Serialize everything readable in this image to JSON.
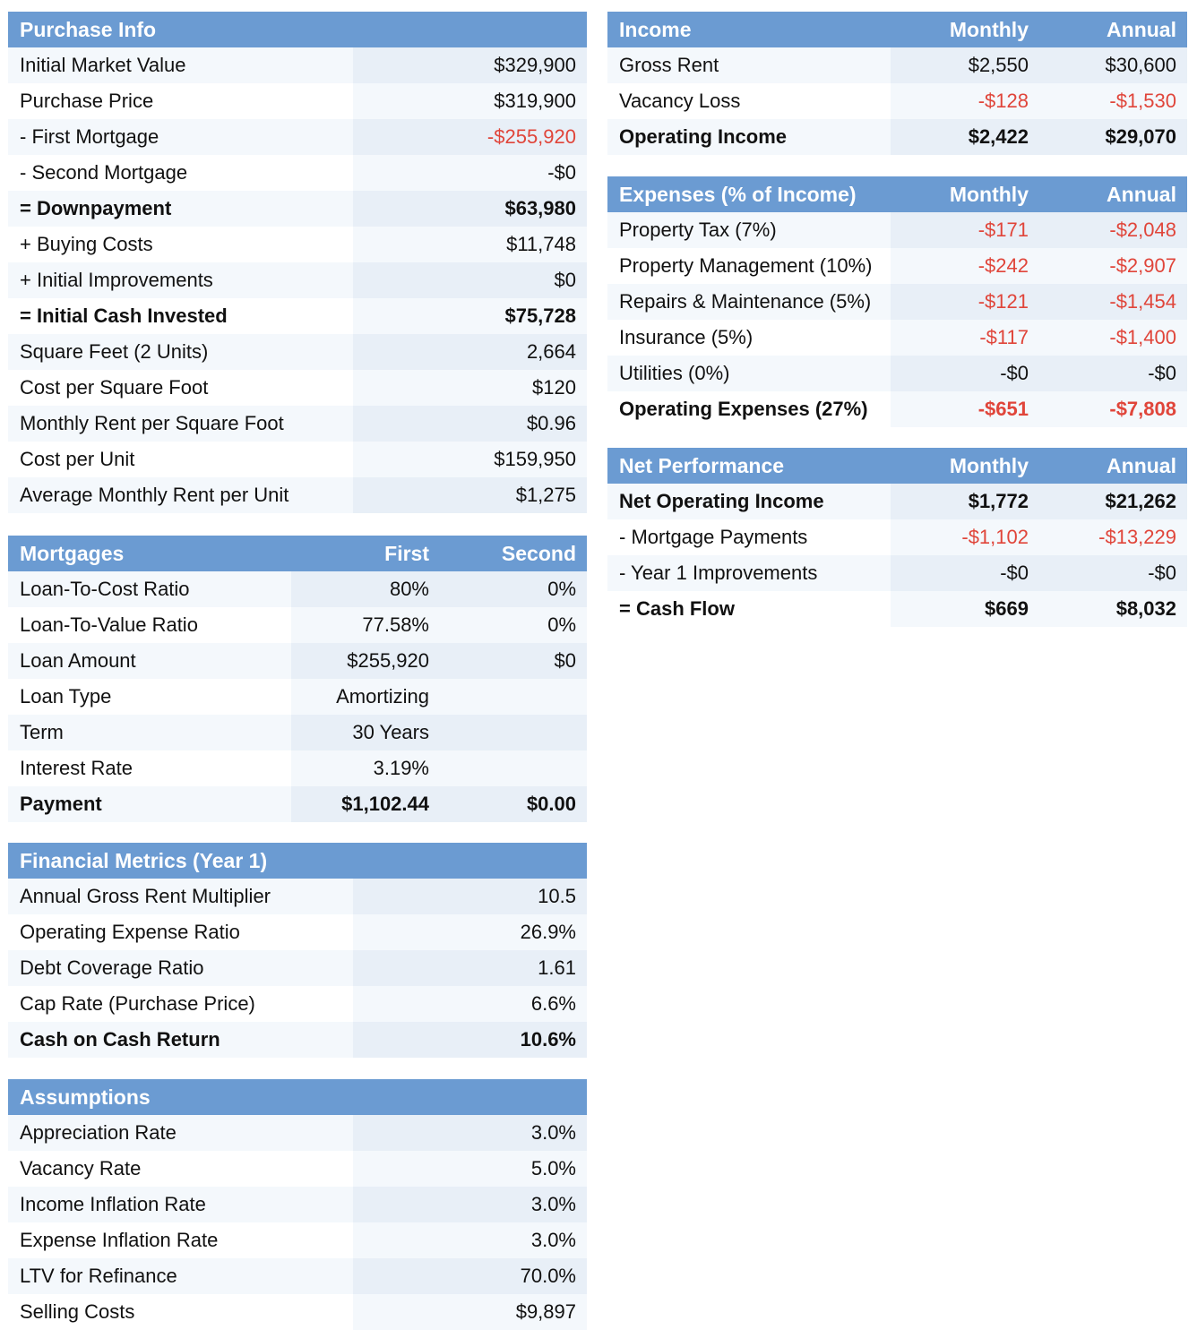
{
  "purchase": {
    "title": "Purchase Info",
    "rows": [
      {
        "label": "Initial Market Value",
        "value": "$329,900"
      },
      {
        "label": "Purchase Price",
        "value": "$319,900"
      },
      {
        "label": "- First Mortgage",
        "value": "-$255,920"
      },
      {
        "label": "- Second Mortgage",
        "value": "-$0"
      },
      {
        "label": "= Downpayment",
        "value": "$63,980"
      },
      {
        "label": "+ Buying Costs",
        "value": "$11,748"
      },
      {
        "label": "+ Initial Improvements",
        "value": "$0"
      },
      {
        "label": "= Initial Cash Invested",
        "value": "$75,728"
      },
      {
        "label": "Square Feet (2 Units)",
        "value": "2,664"
      },
      {
        "label": "Cost per Square Foot",
        "value": "$120"
      },
      {
        "label": "Monthly Rent per Square Foot",
        "value": "$0.96"
      },
      {
        "label": "Cost per Unit",
        "value": "$159,950"
      },
      {
        "label": "Average Monthly Rent per Unit",
        "value": "$1,275"
      }
    ]
  },
  "mortgages": {
    "title": "Mortgages",
    "col1": "First",
    "col2": "Second",
    "rows": [
      {
        "label": "Loan-To-Cost Ratio",
        "first": "80%",
        "second": "0%"
      },
      {
        "label": "Loan-To-Value Ratio",
        "first": "77.58%",
        "second": "0%"
      },
      {
        "label": "Loan Amount",
        "first": "$255,920",
        "second": "$0"
      },
      {
        "label": "Loan Type",
        "first": "Amortizing",
        "second": ""
      },
      {
        "label": "Term",
        "first": "30 Years",
        "second": ""
      },
      {
        "label": "Interest Rate",
        "first": "3.19%",
        "second": ""
      },
      {
        "label": "Payment",
        "first": "$1,102.44",
        "second": "$0.00"
      }
    ]
  },
  "metrics": {
    "title": "Financial Metrics (Year 1)",
    "rows": [
      {
        "label": "Annual Gross Rent Multiplier",
        "value": "10.5"
      },
      {
        "label": "Operating Expense Ratio",
        "value": "26.9%"
      },
      {
        "label": "Debt Coverage Ratio",
        "value": "1.61"
      },
      {
        "label": "Cap Rate (Purchase Price)",
        "value": "6.6%"
      },
      {
        "label": "Cash on Cash Return",
        "value": "10.6%"
      }
    ]
  },
  "assumptions": {
    "title": "Assumptions",
    "rows": [
      {
        "label": "Appreciation Rate",
        "value": "3.0%"
      },
      {
        "label": "Vacancy Rate",
        "value": "5.0%"
      },
      {
        "label": "Income Inflation Rate",
        "value": "3.0%"
      },
      {
        "label": "Expense Inflation Rate",
        "value": "3.0%"
      },
      {
        "label": "LTV for Refinance",
        "value": "70.0%"
      },
      {
        "label": "Selling Costs",
        "value": "$9,897"
      }
    ]
  },
  "income": {
    "title": "Income",
    "col1": "Monthly",
    "col2": "Annual",
    "rows": [
      {
        "label": "Gross Rent",
        "monthly": "$2,550",
        "annual": "$30,600"
      },
      {
        "label": "Vacancy Loss",
        "monthly": "-$128",
        "annual": "-$1,530"
      },
      {
        "label": "Operating Income",
        "monthly": "$2,422",
        "annual": "$29,070"
      }
    ]
  },
  "expenses": {
    "title": "Expenses (% of Income)",
    "col1": "Monthly",
    "col2": "Annual",
    "rows": [
      {
        "label": "Property Tax (7%)",
        "monthly": "-$171",
        "annual": "-$2,048"
      },
      {
        "label": "Property Management (10%)",
        "monthly": "-$242",
        "annual": "-$2,907"
      },
      {
        "label": "Repairs & Maintenance (5%)",
        "monthly": "-$121",
        "annual": "-$1,454"
      },
      {
        "label": "Insurance (5%)",
        "monthly": "-$117",
        "annual": "-$1,400"
      },
      {
        "label": "Utilities (0%)",
        "monthly": "-$0",
        "annual": "-$0"
      },
      {
        "label": "Operating Expenses (27%)",
        "monthly": "-$651",
        "annual": "-$7,808"
      }
    ]
  },
  "netperf": {
    "title": "Net Performance",
    "col1": "Monthly",
    "col2": "Annual",
    "rows": [
      {
        "label": "Net Operating Income",
        "monthly": "$1,772",
        "annual": "$21,262"
      },
      {
        "label": "- Mortgage Payments",
        "monthly": "-$1,102",
        "annual": "-$13,229"
      },
      {
        "label": "- Year 1 Improvements",
        "monthly": "-$0",
        "annual": "-$0"
      },
      {
        "label": "= Cash Flow",
        "monthly": "$669",
        "annual": "$8,032"
      }
    ]
  },
  "colors": {
    "header": "#6b9bd2",
    "negative": "#e0453a"
  }
}
